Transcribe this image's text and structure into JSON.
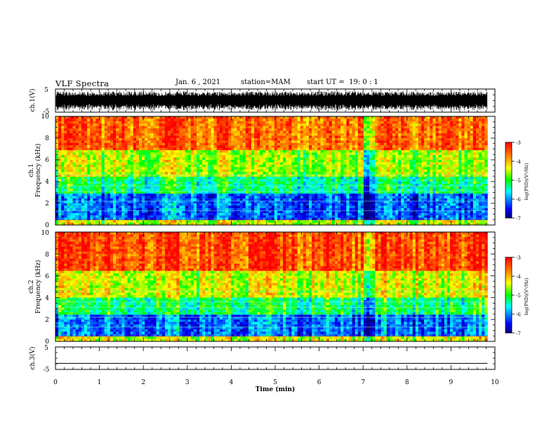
{
  "header": {
    "title": "VLF Spectra",
    "date": "Jan. 6 , 2021",
    "station": "station=MAM",
    "start": "start UT =  19: 0 : 1"
  },
  "chart_data": [
    {
      "type": "line",
      "panel": "waveform ch.1",
      "ylabel": "ch.1(V)",
      "ylim": [
        -5,
        5
      ],
      "y_ticks": [
        "5",
        "-5"
      ],
      "xlim": [
        0,
        10
      ],
      "description": "dense noisy waveform spanning roughly -4 to 4 V across 0 to 9.8 min"
    },
    {
      "type": "heatmap",
      "panel": "spectrogram ch.1",
      "ylabel": "Frequency (kHz)",
      "channel": "ch.1",
      "ylim": [
        0,
        10
      ],
      "y_ticks": [
        "0",
        "2",
        "4",
        "6",
        "8",
        "10"
      ],
      "xlim": [
        0,
        10
      ],
      "data_extent_min": 9.83,
      "colorbar": {
        "label": "log(PSD)(V²/Hz)",
        "range": [
          -7,
          -3
        ],
        "ticks": [
          "-3",
          "-4",
          "-5",
          "-6",
          "-7"
        ]
      },
      "approx_log_psd_by_band": [
        {
          "band_khz": [
            0,
            0.5
          ],
          "value": -4.5
        },
        {
          "band_khz": [
            0.5,
            3
          ],
          "value": -6.2
        },
        {
          "band_khz": [
            3,
            4.5
          ],
          "value": -5.3
        },
        {
          "band_khz": [
            4.5,
            7
          ],
          "value": -4.6
        },
        {
          "band_khz": [
            7,
            10
          ],
          "value": -3.6
        }
      ],
      "quiet_interval_min": [
        7.0,
        7.3
      ]
    },
    {
      "type": "heatmap",
      "panel": "spectrogram ch.2",
      "ylabel": "Frequency (kHz)",
      "channel": "ch.2",
      "ylim": [
        0,
        10
      ],
      "y_ticks": [
        "0",
        "2",
        "4",
        "6",
        "8",
        "10"
      ],
      "xlim": [
        0,
        10
      ],
      "data_extent_min": 9.83,
      "colorbar": {
        "label": "log(PSD)(V²/Hz)",
        "range": [
          -7,
          -3
        ],
        "ticks": [
          "-3",
          "-4",
          "-5",
          "-6",
          "-7"
        ]
      },
      "approx_log_psd_by_band": [
        {
          "band_khz": [
            0,
            0.5
          ],
          "value": -4.4
        },
        {
          "band_khz": [
            0.5,
            2.5
          ],
          "value": -6.1
        },
        {
          "band_khz": [
            2.5,
            4
          ],
          "value": -5.2
        },
        {
          "band_khz": [
            4,
            6.5
          ],
          "value": -4.4
        },
        {
          "band_khz": [
            6.5,
            10
          ],
          "value": -3.4
        }
      ],
      "quiet_interval_min": [
        7.0,
        7.3
      ]
    },
    {
      "type": "line",
      "panel": "waveform ch.3",
      "ylabel": "ch.3(V)",
      "ylim": [
        -5,
        5
      ],
      "y_ticks": [
        "5",
        "-5"
      ],
      "xlim": [
        0,
        10
      ],
      "description": "flat line",
      "value": -2.3
    }
  ],
  "x_axis": {
    "label": "Time (min)",
    "ticks": [
      "0",
      "1",
      "2",
      "3",
      "4",
      "5",
      "6",
      "7",
      "8",
      "9",
      "10"
    ]
  },
  "colors": {
    "waveform": "#000000",
    "colormap": [
      "#000080",
      "#0000ff",
      "#00ffff",
      "#00ff00",
      "#ffff00",
      "#ff8000",
      "#ff0000"
    ]
  }
}
